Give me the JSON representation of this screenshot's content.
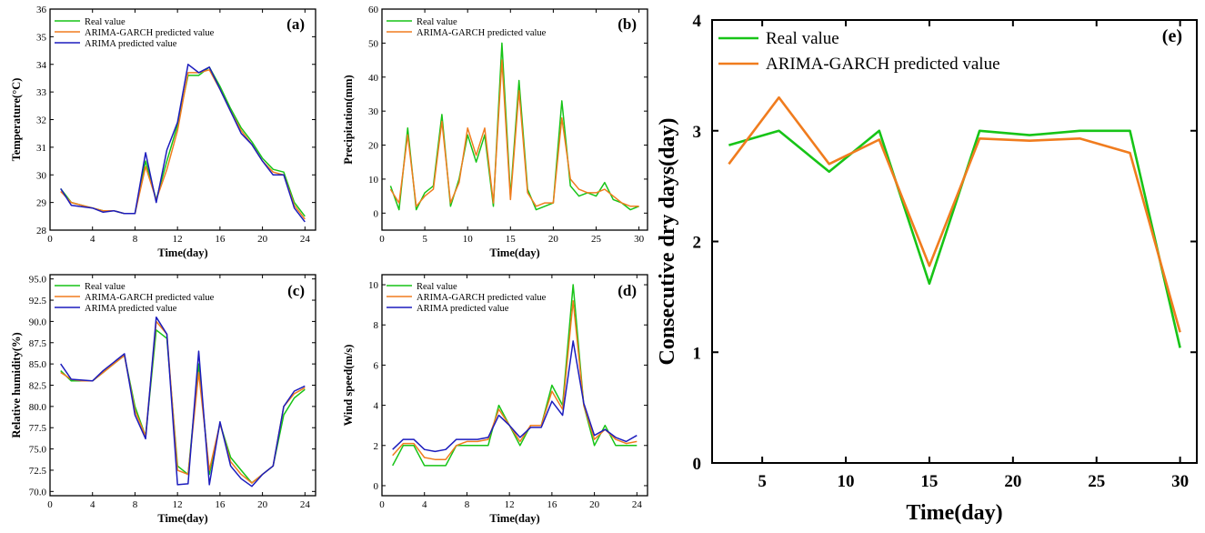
{
  "chart_data": [
    {
      "id": "a",
      "type": "line",
      "tag": "(a)",
      "xlabel": "Time(day)",
      "ylabel": "Temperature(°C)",
      "xlim": [
        0,
        25
      ],
      "ylim": [
        28,
        36
      ],
      "xticks": [
        0,
        4,
        8,
        12,
        16,
        20,
        24
      ],
      "yticks": [
        28,
        29,
        30,
        31,
        32,
        33,
        34,
        35,
        36
      ],
      "x": [
        1,
        2,
        3,
        4,
        5,
        6,
        7,
        8,
        9,
        10,
        11,
        12,
        13,
        14,
        15,
        16,
        17,
        18,
        19,
        20,
        21,
        22,
        23,
        24
      ],
      "series": [
        {
          "name": "Real value",
          "color": "#17c417",
          "values": [
            29.5,
            29.0,
            28.9,
            28.8,
            28.7,
            28.7,
            28.6,
            28.6,
            30.5,
            29.1,
            30.5,
            31.8,
            33.6,
            33.6,
            33.9,
            33.2,
            32.4,
            31.7,
            31.2,
            30.6,
            30.2,
            30.1,
            29.0,
            28.5
          ]
        },
        {
          "name": "ARIMA-GARCH predicted value",
          "color": "#f07c1e",
          "values": [
            29.4,
            29.0,
            28.9,
            28.8,
            28.7,
            28.7,
            28.6,
            28.6,
            30.3,
            29.1,
            30.2,
            31.6,
            33.7,
            33.7,
            33.8,
            33.1,
            32.3,
            31.6,
            31.1,
            30.5,
            30.1,
            30.0,
            28.9,
            28.4
          ]
        },
        {
          "name": "ARIMA predicted value",
          "color": "#1c1cbd",
          "values": [
            29.5,
            28.9,
            28.85,
            28.8,
            28.65,
            28.7,
            28.6,
            28.6,
            30.8,
            29.0,
            30.9,
            31.9,
            34.0,
            33.7,
            33.9,
            33.1,
            32.3,
            31.5,
            31.1,
            30.5,
            30.0,
            30.0,
            28.8,
            28.3
          ]
        }
      ]
    },
    {
      "id": "b",
      "type": "line",
      "tag": "(b)",
      "xlabel": "Time(day)",
      "ylabel": "Precipitation(mm)",
      "xlim": [
        0,
        31
      ],
      "ylim": [
        -5,
        60
      ],
      "xticks": [
        0,
        5,
        10,
        15,
        20,
        25,
        30
      ],
      "yticks": [
        0,
        10,
        20,
        30,
        40,
        50,
        60
      ],
      "x": [
        1,
        2,
        3,
        4,
        5,
        6,
        7,
        8,
        9,
        10,
        11,
        12,
        13,
        14,
        15,
        16,
        17,
        18,
        19,
        20,
        21,
        22,
        23,
        24,
        25,
        26,
        27,
        28,
        29,
        30
      ],
      "series": [
        {
          "name": "Real value",
          "color": "#17c417",
          "values": [
            8,
            1,
            25,
            1,
            6,
            8,
            29,
            2,
            10,
            23,
            15,
            23,
            2,
            50,
            5,
            39,
            7,
            1,
            2,
            3,
            33,
            8,
            5,
            6,
            5,
            9,
            4,
            3,
            1,
            2
          ]
        },
        {
          "name": "ARIMA-GARCH predicted value",
          "color": "#f07c1e",
          "values": [
            7,
            3,
            23,
            2,
            5,
            7,
            27,
            3,
            9,
            25,
            17,
            25,
            3,
            45,
            4,
            36,
            6,
            2,
            3,
            3,
            28,
            10,
            7,
            6,
            6,
            7,
            5,
            3,
            2,
            2
          ]
        }
      ]
    },
    {
      "id": "c",
      "type": "line",
      "tag": "(c)",
      "xlabel": "Time(day)",
      "ylabel": "Relative humidity(%)",
      "xlim": [
        0,
        25
      ],
      "ylim": [
        69.5,
        95.5
      ],
      "xticks": [
        0,
        4,
        8,
        12,
        16,
        20,
        24
      ],
      "yticks": [
        70.0,
        72.5,
        75.0,
        77.5,
        80.0,
        82.5,
        85.0,
        87.5,
        90.0,
        92.5,
        95.0
      ],
      "ytick_labels": [
        "70.0",
        "72.5",
        "75.0",
        "77.5",
        "80.0",
        "82.5",
        "85.0",
        "87.5",
        "90.0",
        "92.5",
        "95.0"
      ],
      "x": [
        1,
        2,
        3,
        4,
        5,
        6,
        7,
        8,
        9,
        10,
        11,
        12,
        13,
        14,
        15,
        16,
        17,
        18,
        19,
        20,
        21,
        22,
        23,
        24
      ],
      "series": [
        {
          "name": "Real value",
          "color": "#17c417",
          "values": [
            84.2,
            83.0,
            83.0,
            83.0,
            84.0,
            85.0,
            86.0,
            80.0,
            76.5,
            89.0,
            88.0,
            73.0,
            72.0,
            85.0,
            72.0,
            78.0,
            74.0,
            72.5,
            71.0,
            72.0,
            73.0,
            79.0,
            81.0,
            82.0
          ]
        },
        {
          "name": "ARIMA-GARCH predicted value",
          "color": "#f07c1e",
          "values": [
            84.0,
            83.2,
            83.0,
            83.0,
            84.0,
            85.0,
            86.0,
            79.5,
            76.5,
            90.0,
            88.5,
            72.5,
            72.0,
            84.0,
            72.5,
            78.0,
            73.5,
            72.0,
            71.0,
            72.0,
            73.0,
            80.0,
            81.5,
            82.2
          ]
        },
        {
          "name": "ARIMA predicted value",
          "color": "#1c1cbd",
          "values": [
            85.0,
            83.2,
            83.1,
            83.0,
            84.2,
            85.2,
            86.2,
            79.0,
            76.2,
            90.5,
            88.5,
            70.8,
            70.9,
            86.5,
            70.8,
            78.2,
            73.0,
            71.5,
            70.6,
            72.0,
            73.0,
            80.0,
            81.8,
            82.4
          ]
        }
      ]
    },
    {
      "id": "d",
      "type": "line",
      "tag": "(d)",
      "xlabel": "Time(day)",
      "ylabel": "Wind speed(m/s)",
      "xlim": [
        0,
        25
      ],
      "ylim": [
        -0.5,
        10.5
      ],
      "xticks": [
        0,
        4,
        8,
        12,
        16,
        20,
        24
      ],
      "yticks": [
        0,
        2,
        4,
        6,
        8,
        10
      ],
      "x": [
        1,
        2,
        3,
        4,
        5,
        6,
        7,
        8,
        9,
        10,
        11,
        12,
        13,
        14,
        15,
        16,
        17,
        18,
        19,
        20,
        21,
        22,
        23,
        24
      ],
      "series": [
        {
          "name": "Real value",
          "color": "#17c417",
          "values": [
            1.0,
            2.0,
            2.0,
            1.0,
            1.0,
            1.0,
            2.0,
            2.0,
            2.0,
            2.0,
            4.0,
            3.0,
            2.0,
            3.0,
            3.0,
            5.0,
            4.0,
            10.0,
            4.0,
            2.0,
            3.0,
            2.0,
            2.0,
            2.0
          ]
        },
        {
          "name": "ARIMA-GARCH predicted value",
          "color": "#f07c1e",
          "values": [
            1.5,
            2.1,
            2.1,
            1.4,
            1.3,
            1.3,
            2.0,
            2.2,
            2.2,
            2.3,
            3.8,
            3.0,
            2.2,
            3.0,
            3.0,
            4.7,
            3.8,
            9.2,
            4.0,
            2.3,
            2.8,
            2.3,
            2.1,
            2.2
          ]
        },
        {
          "name": "ARIMA predicted value",
          "color": "#1c1cbd",
          "values": [
            1.8,
            2.3,
            2.3,
            1.8,
            1.7,
            1.8,
            2.3,
            2.3,
            2.3,
            2.4,
            3.5,
            3.0,
            2.4,
            2.9,
            2.9,
            4.2,
            3.5,
            7.2,
            4.1,
            2.5,
            2.8,
            2.4,
            2.2,
            2.5
          ]
        }
      ]
    },
    {
      "id": "e",
      "type": "line",
      "tag": "(e)",
      "xlabel": "Time(day)",
      "ylabel": "Consecutive dry days(day)",
      "xlim": [
        2,
        31
      ],
      "ylim": [
        0,
        4
      ],
      "xticks": [
        5,
        10,
        15,
        20,
        25,
        30
      ],
      "yticks": [
        0,
        1,
        2,
        3,
        4
      ],
      "x": [
        3,
        6,
        9,
        12,
        15,
        18,
        21,
        24,
        27,
        30
      ],
      "series": [
        {
          "name": "Real value",
          "color": "#17c417",
          "values": [
            2.87,
            3.0,
            2.63,
            3.0,
            1.62,
            3.0,
            2.96,
            3.0,
            3.0,
            1.04
          ]
        },
        {
          "name": "ARIMA-GARCH predicted value",
          "color": "#f07c1e",
          "values": [
            2.7,
            3.3,
            2.7,
            2.92,
            1.78,
            2.93,
            2.91,
            2.93,
            2.8,
            1.18
          ]
        }
      ]
    }
  ]
}
